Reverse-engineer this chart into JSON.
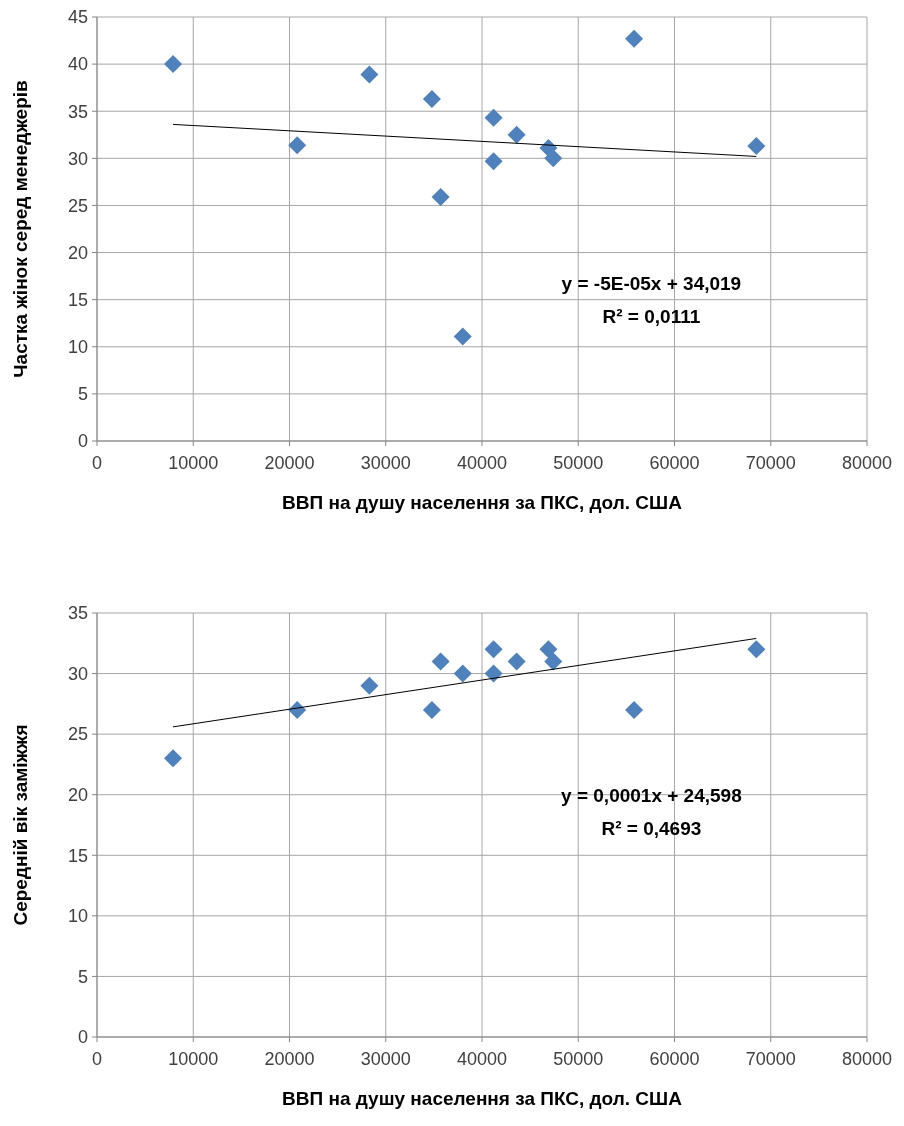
{
  "chart_data": [
    {
      "type": "scatter",
      "ylabel": "Частка жінок серед менеджерів",
      "xlabel": "ВВП на душу населення за ПКС, дол. США",
      "xlim": [
        0,
        80000
      ],
      "xticks": [
        0,
        10000,
        20000,
        30000,
        40000,
        50000,
        60000,
        70000,
        80000
      ],
      "ylim": [
        0,
        45
      ],
      "yticks": [
        0,
        5,
        10,
        15,
        20,
        25,
        30,
        35,
        40,
        45
      ],
      "grid": true,
      "annotations": [
        "y = -5E-05x + 34,019",
        "R² = 0,0111"
      ],
      "series": [
        {
          "color": "#4f81bd",
          "marker": "diamond",
          "x": [
            7900,
            20800,
            28300,
            34800,
            35700,
            38000,
            41200,
            41200,
            43600,
            46900,
            47400,
            55800,
            68500
          ],
          "values": [
            40,
            31.4,
            38.9,
            36.3,
            25.9,
            11.1,
            34.3,
            29.7,
            32.5,
            31.1,
            30,
            42.7,
            31.3
          ]
        },
        {
          "type": "line",
          "color": "#000000",
          "marker": "none",
          "x": [
            7900,
            68500
          ],
          "values": [
            33.6,
            30.2
          ]
        }
      ]
    },
    {
      "type": "scatter",
      "ylabel": "Середній вік заміжжя",
      "xlabel": "ВВП на душу населення за ПКС, дол. США",
      "xlim": [
        0,
        80000
      ],
      "xticks": [
        0,
        10000,
        20000,
        30000,
        40000,
        50000,
        60000,
        70000,
        80000
      ],
      "ylim": [
        0,
        35
      ],
      "yticks": [
        0,
        5,
        10,
        15,
        20,
        25,
        30,
        35
      ],
      "grid": true,
      "annotations": [
        "y = 0,0001x + 24,598",
        "R² = 0,4693"
      ],
      "series": [
        {
          "color": "#4f81bd",
          "marker": "diamond",
          "x": [
            7900,
            20800,
            28300,
            34800,
            35700,
            38000,
            41200,
            41200,
            43600,
            46900,
            47400,
            55800,
            68500
          ],
          "values": [
            23,
            27,
            29,
            27,
            31,
            30,
            32,
            30,
            31,
            32,
            31,
            27,
            32
          ]
        },
        {
          "type": "line",
          "color": "#000000",
          "marker": "none",
          "x": [
            7900,
            68500
          ],
          "values": [
            25.6,
            32.9
          ]
        }
      ]
    }
  ]
}
